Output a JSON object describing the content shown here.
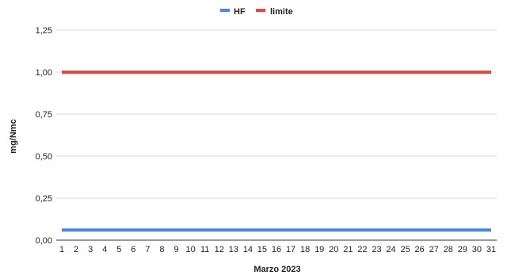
{
  "chart_data": {
    "type": "line",
    "xlabel": "Marzo 2023",
    "ylabel": "mg/Nmc",
    "x": [
      1,
      2,
      3,
      4,
      5,
      6,
      7,
      8,
      9,
      10,
      11,
      12,
      13,
      14,
      15,
      16,
      17,
      18,
      19,
      20,
      21,
      22,
      23,
      24,
      25,
      26,
      27,
      28,
      29,
      30,
      31
    ],
    "ylim": [
      0,
      1.25
    ],
    "yticks": [
      "0,00",
      "0,25",
      "0,50",
      "0,75",
      "1,00",
      "1,25"
    ],
    "ytick_values": [
      0,
      0.25,
      0.5,
      0.75,
      1.0,
      1.25
    ],
    "grid": true,
    "legend_position": "top",
    "series": [
      {
        "name": "HF",
        "color": "#4a86e8",
        "values": [
          0.06,
          0.06,
          0.06,
          0.06,
          0.06,
          0.06,
          0.06,
          0.06,
          0.06,
          0.06,
          0.06,
          0.06,
          0.06,
          0.06,
          0.06,
          0.06,
          0.06,
          0.06,
          0.06,
          0.06,
          0.06,
          0.06,
          0.06,
          0.06,
          0.06,
          0.06,
          0.06,
          0.06,
          0.06,
          0.06,
          0.06
        ]
      },
      {
        "name": "limite",
        "color": "#e8473b",
        "values": [
          1,
          1,
          1,
          1,
          1,
          1,
          1,
          1,
          1,
          1,
          1,
          1,
          1,
          1,
          1,
          1,
          1,
          1,
          1,
          1,
          1,
          1,
          1,
          1,
          1,
          1,
          1,
          1,
          1,
          1,
          1
        ]
      }
    ]
  }
}
